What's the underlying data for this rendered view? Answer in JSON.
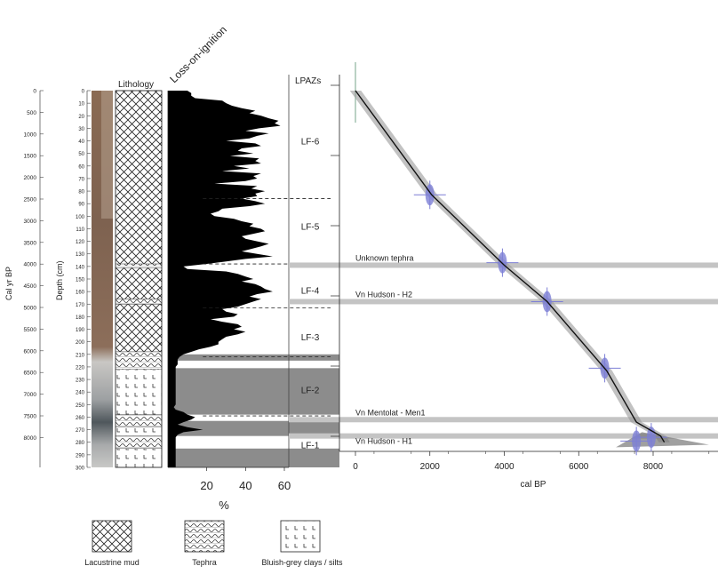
{
  "chart_data": [
    {
      "type": "area",
      "labels": {
        "lithology": "Lithology",
        "loi": "Loss-on-ignition",
        "lpaz": "LPAZs",
        "cal_yr": "Cal yr BP",
        "depth": "Depth (cm)",
        "x_unit": "%"
      },
      "cal_ticks": [
        "0",
        "500",
        "1000",
        "1500",
        "2000",
        "2500",
        "3000",
        "3500",
        "4000",
        "4500",
        "5000",
        "5500",
        "6000",
        "6500",
        "7000",
        "7500",
        "8000"
      ],
      "depth_ticks": [
        "0",
        "10",
        "20",
        "30",
        "40",
        "50",
        "60",
        "70",
        "80",
        "90",
        "100",
        "110",
        "120",
        "130",
        "140",
        "150",
        "160",
        "170",
        "180",
        "190",
        "200",
        "210",
        "220",
        "230",
        "240",
        "250",
        "260",
        "270",
        "280",
        "290",
        "300"
      ],
      "x_ticks": [
        "20",
        "40",
        "60"
      ],
      "xlim": [
        0,
        60
      ],
      "ylim": [
        0,
        300
      ],
      "depth": [
        0,
        2,
        4,
        6,
        8,
        10,
        12,
        14,
        16,
        18,
        20,
        22,
        24,
        26,
        28,
        30,
        32,
        34,
        36,
        38,
        40,
        42,
        44,
        46,
        48,
        50,
        52,
        54,
        56,
        58,
        60,
        62,
        64,
        66,
        68,
        70,
        72,
        74,
        76,
        78,
        80,
        82,
        84,
        86,
        88,
        90,
        92,
        94,
        96,
        98,
        100,
        102,
        104,
        106,
        108,
        110,
        112,
        114,
        116,
        118,
        120,
        122,
        124,
        126,
        128,
        130,
        132,
        134,
        136,
        138,
        140,
        142,
        144,
        146,
        148,
        150,
        152,
        154,
        156,
        158,
        160,
        162,
        164,
        166,
        168,
        170,
        172,
        174,
        176,
        178,
        180,
        182,
        184,
        186,
        188,
        190,
        192,
        194,
        196,
        198,
        200,
        202,
        204,
        206,
        208,
        210,
        212,
        214,
        216,
        218,
        220,
        222,
        224,
        226,
        228,
        230,
        232,
        234,
        236,
        238,
        240,
        242,
        244,
        246,
        248,
        250,
        252,
        254,
        256,
        258,
        260,
        262,
        264,
        266,
        268,
        270,
        272,
        274,
        276,
        278,
        280,
        282,
        284,
        286,
        288,
        290,
        292,
        294,
        296,
        298,
        300
      ],
      "loi": [
        10,
        12,
        12,
        14,
        28,
        30,
        33,
        38,
        45,
        42,
        48,
        52,
        57,
        55,
        58,
        47,
        40,
        52,
        46,
        42,
        30,
        45,
        48,
        38,
        36,
        44,
        32,
        47,
        45,
        48,
        34,
        42,
        28,
        48,
        44,
        46,
        40,
        24,
        46,
        43,
        50,
        45,
        46,
        38,
        45,
        50,
        42,
        28,
        26,
        22,
        24,
        34,
        38,
        44,
        42,
        48,
        50,
        44,
        38,
        40,
        46,
        52,
        48,
        43,
        38,
        46,
        54,
        40,
        30,
        20,
        8,
        10,
        30,
        36,
        40,
        44,
        38,
        45,
        48,
        50,
        54,
        46,
        42,
        48,
        44,
        40,
        36,
        28,
        30,
        36,
        34,
        22,
        28,
        36,
        38,
        34,
        40,
        36,
        30,
        28,
        26,
        26,
        22,
        16,
        12,
        8,
        6,
        5,
        5,
        5,
        4,
        4,
        4,
        4,
        4,
        4,
        4,
        4,
        4,
        4,
        4,
        4,
        4,
        4,
        4,
        4,
        3,
        4,
        8,
        10,
        14,
        12,
        8,
        5,
        10,
        18,
        8,
        5,
        4,
        4,
        4,
        4,
        4,
        4,
        4,
        4,
        4,
        4,
        4,
        4,
        4
      ],
      "zones": [
        {
          "label": "LF-6",
          "depth_mid": 40
        },
        {
          "label": "LF-5",
          "depth_mid": 108
        },
        {
          "label": "LF-4",
          "depth_mid": 159
        },
        {
          "label": "LF-3",
          "depth_mid": 196
        },
        {
          "label": "LF-2",
          "depth_mid": 238
        },
        {
          "label": "LF-1",
          "depth_mid": 282
        }
      ],
      "zone_bounds": [
        86,
        138,
        173,
        212,
        259
      ]
    },
    {
      "type": "line",
      "xlabel": "cal BP",
      "x_ticks": [
        "0",
        "2000",
        "4000",
        "6000",
        "8000"
      ],
      "xlim": [
        0,
        9500
      ],
      "ylim": [
        0,
        300
      ],
      "tephra_labels": [
        "Unknown tephra",
        "Vn Hudson - H2",
        "Vn Mentolat - Men1",
        "Vn Hudson - H1"
      ],
      "tephra_depth": [
        139,
        168,
        262,
        275
      ],
      "age_depth": {
        "x": [
          0,
          2050,
          4000,
          5150,
          6750,
          7550,
          8200,
          8300
        ],
        "y": [
          0,
          83,
          139,
          168,
          223,
          264,
          275,
          280
        ]
      },
      "dated_samples": [
        {
          "age": 2000,
          "depth": 83
        },
        {
          "age": 3950,
          "depth": 137
        },
        {
          "age": 5150,
          "depth": 168
        },
        {
          "age": 6700,
          "depth": 221
        },
        {
          "age": 7550,
          "depth": 279
        },
        {
          "age": 7950,
          "depth": 276
        }
      ]
    }
  ],
  "legend": [
    "Lacustrine mud",
    "Tephra",
    "Bluish-grey clays / silts"
  ]
}
